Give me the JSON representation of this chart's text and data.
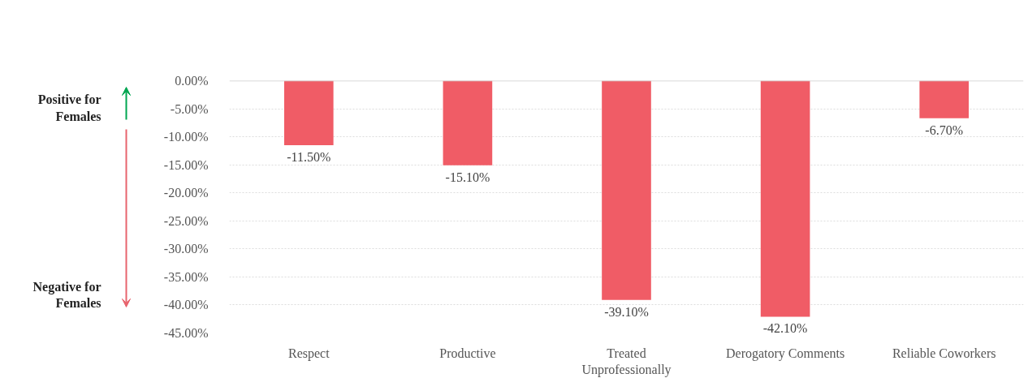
{
  "chart_data": {
    "type": "bar",
    "categories": [
      "Respect",
      "Productive",
      "Treated Unprofessionally",
      "Derogatory Comments",
      "Reliable Coworkers"
    ],
    "values": [
      -11.5,
      -15.1,
      -39.1,
      -42.1,
      -6.7
    ],
    "value_labels": [
      "-11.50%",
      "-15.10%",
      "-39.10%",
      "-42.10%",
      "-6.70%"
    ],
    "color": "#f05c66",
    "ylim": [
      -45,
      0
    ],
    "yticks": [
      {
        "value": 0,
        "label": "0.00%"
      },
      {
        "value": -5,
        "label": "-5.00%"
      },
      {
        "value": -10,
        "label": "-10.00%"
      },
      {
        "value": -15,
        "label": "-15.00%"
      },
      {
        "value": -20,
        "label": "-20.00%"
      },
      {
        "value": -25,
        "label": "-25.00%"
      },
      {
        "value": -30,
        "label": "-30.00%"
      },
      {
        "value": -35,
        "label": "-35.00%"
      },
      {
        "value": -40,
        "label": "-40.00%"
      },
      {
        "value": -45,
        "label": "-45.00%"
      }
    ],
    "grid": "y",
    "annotations": [
      "Positive for Females",
      "Negative for Females"
    ]
  }
}
